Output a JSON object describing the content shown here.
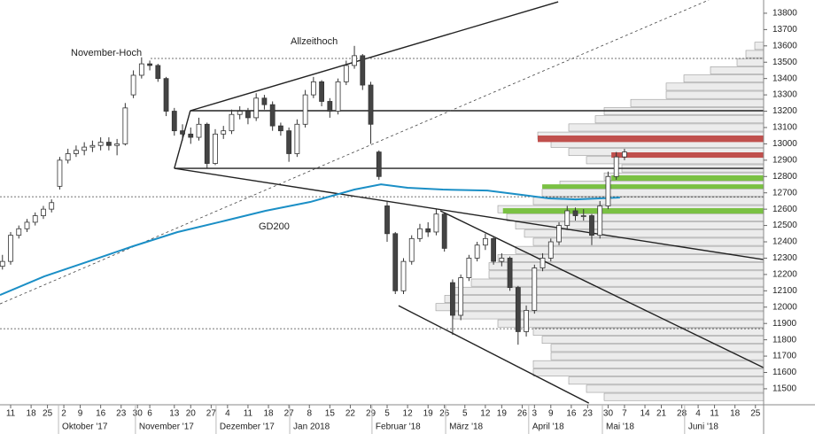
{
  "chart_data": {
    "type": "candlestick",
    "annotations": [
      "November-Hoch",
      "Allzeithoch"
    ],
    "xlim": [
      -2.6,
      184
    ],
    "ylim": [
      11402,
      13881
    ],
    "yticks": [
      11500,
      11600,
      11700,
      11800,
      11900,
      12000,
      12100,
      12200,
      12300,
      12400,
      12500,
      12600,
      12700,
      12800,
      12900,
      13000,
      13100,
      13200,
      13300,
      13400,
      13500,
      13600,
      13700,
      13800
    ],
    "xticks": [
      {
        "value": 0,
        "label": "11"
      },
      {
        "value": 5,
        "label": "18"
      },
      {
        "value": 9,
        "label": "25"
      },
      {
        "value": 13,
        "label": "2"
      },
      {
        "value": 17,
        "label": "9"
      },
      {
        "value": 22,
        "label": "16"
      },
      {
        "value": 27,
        "label": "23"
      },
      {
        "value": 31,
        "label": "30"
      },
      {
        "value": 34,
        "label": "6"
      },
      {
        "value": 40,
        "label": "13"
      },
      {
        "value": 44,
        "label": "20"
      },
      {
        "value": 49,
        "label": "27"
      },
      {
        "value": 53,
        "label": "4"
      },
      {
        "value": 58,
        "label": "11"
      },
      {
        "value": 63,
        "label": "18"
      },
      {
        "value": 68,
        "label": "27"
      },
      {
        "value": 73,
        "label": "8"
      },
      {
        "value": 78,
        "label": "15"
      },
      {
        "value": 83,
        "label": "22"
      },
      {
        "value": 88,
        "label": "29"
      },
      {
        "value": 92,
        "label": "5"
      },
      {
        "value": 97,
        "label": "12"
      },
      {
        "value": 102,
        "label": "19"
      },
      {
        "value": 106,
        "label": "26"
      },
      {
        "value": 111,
        "label": "5"
      },
      {
        "value": 116,
        "label": "12"
      },
      {
        "value": 120,
        "label": "19"
      },
      {
        "value": 125,
        "label": "26"
      },
      {
        "value": 128,
        "label": "3"
      },
      {
        "value": 132,
        "label": "9"
      },
      {
        "value": 137,
        "label": "16"
      },
      {
        "value": 141,
        "label": "23"
      },
      {
        "value": 146,
        "label": "30"
      },
      {
        "value": 150,
        "label": "7"
      },
      {
        "value": 155,
        "label": "14"
      },
      {
        "value": 159,
        "label": "21"
      },
      {
        "value": 164,
        "label": "28"
      },
      {
        "value": 168,
        "label": "4"
      },
      {
        "value": 172,
        "label": "11"
      },
      {
        "value": 177,
        "label": "18"
      },
      {
        "value": 182,
        "label": "25"
      }
    ],
    "month_ticks": [
      {
        "value": 11.7,
        "label": "Oktober '17"
      },
      {
        "value": 30.5,
        "label": "November '17"
      },
      {
        "value": 50.2,
        "label": "Dezember '17"
      },
      {
        "value": 68.2,
        "label": "Jan 2018"
      },
      {
        "value": 88.3,
        "label": "Februar '18"
      },
      {
        "value": 106.3,
        "label": "März '18"
      },
      {
        "value": 126.6,
        "label": "April '18"
      },
      {
        "value": 144.6,
        "label": "Mai '18"
      },
      {
        "value": 164.7,
        "label": "Juni '18"
      }
    ],
    "x": [
      -2,
      0,
      2,
      4,
      6,
      8,
      10,
      12,
      14,
      16,
      18,
      20,
      22,
      24,
      26,
      28,
      30,
      32,
      34,
      36,
      38,
      40,
      42,
      44,
      46,
      48,
      50,
      52,
      54,
      56,
      58,
      60,
      62,
      64,
      66,
      68,
      70,
      72,
      74,
      76,
      78,
      80,
      82,
      84,
      86,
      88,
      90,
      92,
      94,
      96,
      98,
      100,
      102,
      104,
      106,
      108,
      110,
      112,
      114,
      116,
      118,
      120,
      122,
      124,
      126,
      128,
      130,
      132,
      134,
      136,
      138,
      140,
      142,
      144,
      146,
      148,
      150
    ],
    "open": [
      12250,
      12280,
      12440,
      12480,
      12520,
      12560,
      12600,
      12740,
      12900,
      12940,
      12960,
      12980,
      12990,
      13010,
      12990,
      13000,
      13300,
      13420,
      13490,
      13480,
      13400,
      13200,
      13080,
      13060,
      13040,
      13120,
      12880,
      13060,
      13080,
      13180,
      13200,
      13160,
      13280,
      13240,
      13110,
      13080,
      12940,
      13120,
      13300,
      13380,
      13260,
      13200,
      13380,
      13480,
      13540,
      13360,
      12950,
      12620,
      12450,
      12100,
      12280,
      12420,
      12480,
      12460,
      12570,
      12150,
      11950,
      12180,
      12300,
      12380,
      12420,
      12280,
      12300,
      12120,
      11850,
      11980,
      12240,
      12300,
      12400,
      12500,
      12590,
      12560,
      12560,
      12440,
      12620,
      12800,
      12920
    ],
    "high": [
      12320,
      12460,
      12500,
      12540,
      12580,
      12620,
      12660,
      12920,
      12970,
      12990,
      13010,
      13020,
      13040,
      13040,
      13030,
      13250,
      13450,
      13530,
      13510,
      13490,
      13410,
      13220,
      13120,
      13100,
      13160,
      13130,
      13090,
      13110,
      13210,
      13230,
      13220,
      13310,
      13300,
      13260,
      13130,
      13100,
      13150,
      13330,
      13410,
      13390,
      13280,
      13400,
      13510,
      13600,
      13550,
      13380,
      12960,
      12650,
      12460,
      12300,
      12440,
      12510,
      12520,
      12600,
      12580,
      12170,
      12200,
      12320,
      12400,
      12450,
      12430,
      12330,
      12310,
      12130,
      12010,
      12260,
      12330,
      12420,
      12520,
      12620,
      12610,
      12600,
      12570,
      12650,
      12830,
      12950,
      12970
    ],
    "low": [
      12230,
      12260,
      12420,
      12460,
      12500,
      12540,
      12580,
      12720,
      12880,
      12920,
      12930,
      12950,
      12960,
      12960,
      12930,
      12990,
      13280,
      13400,
      13450,
      13380,
      13170,
      13050,
      13020,
      13000,
      13020,
      12850,
      12870,
      13030,
      13060,
      13150,
      13120,
      13140,
      13210,
      13080,
      13050,
      12890,
      12920,
      13100,
      13280,
      13230,
      13160,
      13180,
      13360,
      13460,
      13330,
      13000,
      12780,
      12400,
      12080,
      12080,
      12260,
      12400,
      12430,
      12440,
      12340,
      11830,
      11920,
      12160,
      12280,
      12350,
      12260,
      12250,
      12100,
      11770,
      11820,
      11960,
      12220,
      12280,
      12380,
      12480,
      12530,
      12530,
      12380,
      12420,
      12600,
      12780,
      12900
    ],
    "close": [
      12280,
      12440,
      12480,
      12520,
      12560,
      12600,
      12640,
      12900,
      12940,
      12960,
      12980,
      12990,
      13010,
      12990,
      13000,
      13220,
      13420,
      13490,
      13480,
      13400,
      13200,
      13080,
      13060,
      13040,
      13120,
      12880,
      13060,
      13080,
      13180,
      13200,
      13160,
      13280,
      13240,
      13110,
      13080,
      12940,
      13120,
      13300,
      13380,
      13260,
      13200,
      13380,
      13480,
      13540,
      13360,
      13120,
      12800,
      12450,
      12100,
      12280,
      12420,
      12480,
      12460,
      12570,
      12360,
      11950,
      12180,
      12300,
      12380,
      12420,
      12280,
      12300,
      12120,
      11850,
      11980,
      12240,
      12300,
      12400,
      12500,
      12590,
      12560,
      12560,
      12440,
      12620,
      12800,
      12920,
      12950
    ],
    "ma": {
      "name": "GD200",
      "color": "#1b8fc6",
      "x": [
        -2.6,
        8.2,
        19,
        29.9,
        40.7,
        51.5,
        62.3,
        73.2,
        84,
        90.5,
        97,
        105.6,
        116.5,
        125.1,
        131.6,
        138.1,
        148.9
      ],
      "values": [
        12074,
        12188,
        12280,
        12373,
        12459,
        12524,
        12590,
        12644,
        12720,
        12752,
        12731,
        12720,
        12714,
        12687,
        12666,
        12660,
        12671
      ]
    },
    "volume_profile": {
      "color": "#ececec",
      "levels": [
        13600,
        13550,
        13500,
        13450,
        13400,
        13350,
        13300,
        13250,
        13200,
        13150,
        13100,
        13050,
        13000,
        12950,
        12900,
        12850,
        12800,
        12750,
        12700,
        12650,
        12600,
        12550,
        12500,
        12450,
        12400,
        12350,
        12300,
        12250,
        12200,
        12150,
        12100,
        12050,
        12000,
        11950,
        11900,
        11850,
        11800,
        11750,
        11700,
        11650,
        11600,
        11550,
        11500,
        11450
      ],
      "values": [
        10,
        20,
        30,
        60,
        90,
        110,
        110,
        150,
        180,
        190,
        220,
        255,
        240,
        220,
        200,
        160,
        180,
        230,
        250,
        260,
        300,
        290,
        280,
        270,
        260,
        280,
        300,
        310,
        310,
        330,
        350,
        360,
        370,
        350,
        300,
        260,
        250,
        240,
        240,
        260,
        260,
        220,
        200,
        180
      ]
    },
    "zones": [
      {
        "x": [
          128.8,
          184
        ],
        "y": [
          13011,
          13051
        ],
        "color": "#c0504d"
      },
      {
        "x": [
          146.8,
          184
        ],
        "y": [
          12915,
          12948
        ],
        "color": "#c0504d"
      },
      {
        "x": [
          146.8,
          184
        ],
        "y": [
          12774,
          12807
        ],
        "color": "#7ac143"
      },
      {
        "x": [
          129.9,
          184
        ],
        "y": [
          12725,
          12752
        ],
        "color": "#7ac143"
      },
      {
        "x": [
          120.3,
          184
        ],
        "y": [
          12573,
          12606
        ],
        "color": "#7ac143"
      }
    ],
    "trendlines": [
      {
        "x": [
          40,
          43.9
        ],
        "y": [
          12850,
          13203
        ],
        "style": "solid"
      },
      {
        "x": [
          43.9,
          133.8
        ],
        "y": [
          13203,
          13870
        ],
        "style": "solid"
      },
      {
        "x": [
          43.9,
          184
        ],
        "y": [
          13203,
          13203
        ],
        "style": "solid"
      },
      {
        "x": [
          40,
          184
        ],
        "y": [
          12850,
          12850
        ],
        "style": "solid"
      },
      {
        "x": [
          40,
          184
        ],
        "y": [
          12850,
          12291
        ],
        "style": "solid"
      },
      {
        "x": [
          105,
          184
        ],
        "y": [
          12590,
          11629
        ],
        "style": "solid"
      },
      {
        "x": [
          94.8,
          141.3
        ],
        "y": [
          12009,
          11412
        ],
        "style": "solid"
      },
      {
        "x": [
          -2.6,
          170.6
        ],
        "y": [
          12020,
          13881
        ],
        "style": "dashed"
      },
      {
        "x": [
          34.2,
          184
        ],
        "y": [
          13523,
          13523
        ],
        "style": "dotted"
      },
      {
        "x": [
          -2.6,
          184
        ],
        "y": [
          12676,
          12676
        ],
        "style": "dotted"
      },
      {
        "x": [
          -2.6,
          184
        ],
        "y": [
          11868,
          11868
        ],
        "style": "dotted"
      }
    ]
  }
}
